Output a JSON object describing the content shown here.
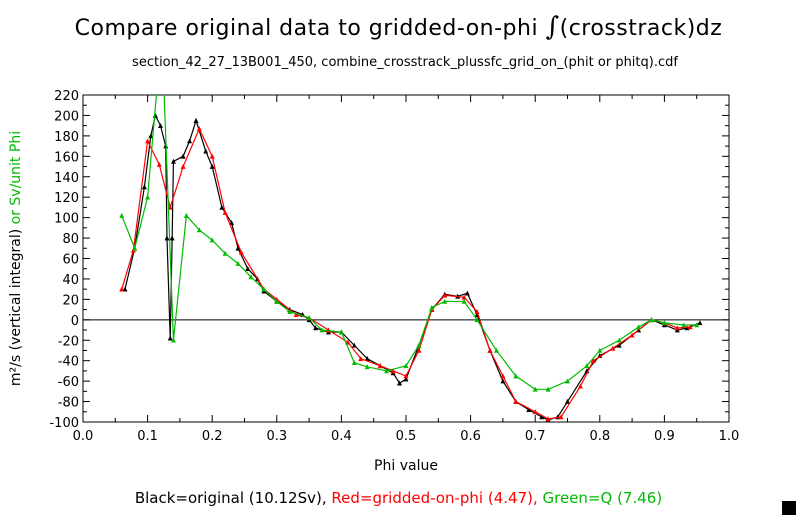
{
  "chart_data": {
    "type": "line",
    "title_prefix": "Compare original data to gridded-on-phi ",
    "title_symbol": "∫",
    "title_suffix": "(crosstrack)dz",
    "subtitle": "section_42_27_13B001_450, combine_crosstrack_plussfc_grid_on_(phit or phitq).cdf",
    "xlabel": "Phi value",
    "ylabel_black": "m²/s (vertical integral)",
    "ylabel_green": " or Sv/unit Phi",
    "xlim": [
      0,
      1
    ],
    "ylim": [
      -100,
      220
    ],
    "xticks": [
      "0.0",
      "0.1",
      "0.2",
      "0.3",
      "0.4",
      "0.5",
      "0.6",
      "0.7",
      "0.8",
      "0.9",
      "1.0"
    ],
    "yticks": [
      "220",
      "200",
      "180",
      "160",
      "140",
      "120",
      "100",
      "80",
      "60",
      "40",
      "20",
      "0",
      "-20",
      "-40",
      "-60",
      "-80",
      "-100"
    ],
    "colors": {
      "black": "#000000",
      "red": "#ff0000",
      "green": "#00bb00"
    },
    "legend": {
      "black": "Black=original (10.12Sv), ",
      "red": "Red=gridded-on-phi (4.47), ",
      "green": "Green=Q (7.46)"
    },
    "series": [
      {
        "name": "original",
        "color": "#000000",
        "points": [
          [
            0.065,
            30
          ],
          [
            0.08,
            70
          ],
          [
            0.095,
            130
          ],
          [
            0.105,
            180
          ],
          [
            0.112,
            200
          ],
          [
            0.12,
            190
          ],
          [
            0.128,
            170
          ],
          [
            0.13,
            80
          ],
          [
            0.135,
            -18
          ],
          [
            0.138,
            80
          ],
          [
            0.14,
            155
          ],
          [
            0.155,
            160
          ],
          [
            0.165,
            175
          ],
          [
            0.175,
            195
          ],
          [
            0.19,
            165
          ],
          [
            0.2,
            150
          ],
          [
            0.215,
            110
          ],
          [
            0.23,
            95
          ],
          [
            0.24,
            70
          ],
          [
            0.255,
            50
          ],
          [
            0.27,
            40
          ],
          [
            0.28,
            28
          ],
          [
            0.3,
            18
          ],
          [
            0.32,
            10
          ],
          [
            0.34,
            5
          ],
          [
            0.35,
            0
          ],
          [
            0.36,
            -8
          ],
          [
            0.38,
            -12
          ],
          [
            0.4,
            -12
          ],
          [
            0.42,
            -25
          ],
          [
            0.44,
            -38
          ],
          [
            0.46,
            -45
          ],
          [
            0.48,
            -52
          ],
          [
            0.49,
            -62
          ],
          [
            0.5,
            -58
          ],
          [
            0.52,
            -25
          ],
          [
            0.54,
            10
          ],
          [
            0.56,
            25
          ],
          [
            0.58,
            23
          ],
          [
            0.595,
            26
          ],
          [
            0.61,
            5
          ],
          [
            0.63,
            -30
          ],
          [
            0.65,
            -60
          ],
          [
            0.67,
            -80
          ],
          [
            0.69,
            -88
          ],
          [
            0.71,
            -95
          ],
          [
            0.72,
            -98
          ],
          [
            0.735,
            -95
          ],
          [
            0.75,
            -80
          ],
          [
            0.78,
            -50
          ],
          [
            0.8,
            -35
          ],
          [
            0.83,
            -25
          ],
          [
            0.86,
            -10
          ],
          [
            0.88,
            0
          ],
          [
            0.9,
            -5
          ],
          [
            0.92,
            -10
          ],
          [
            0.935,
            -8
          ],
          [
            0.955,
            -3
          ]
        ]
      },
      {
        "name": "gridded-on-phi",
        "color": "#ff0000",
        "points": [
          [
            0.06,
            30
          ],
          [
            0.078,
            68
          ],
          [
            0.1,
            175
          ],
          [
            0.118,
            152
          ],
          [
            0.135,
            110
          ],
          [
            0.155,
            150
          ],
          [
            0.18,
            187
          ],
          [
            0.2,
            160
          ],
          [
            0.22,
            105
          ],
          [
            0.245,
            66
          ],
          [
            0.28,
            30
          ],
          [
            0.3,
            20
          ],
          [
            0.33,
            5
          ],
          [
            0.35,
            2
          ],
          [
            0.38,
            -10
          ],
          [
            0.41,
            -22
          ],
          [
            0.43,
            -38
          ],
          [
            0.46,
            -45
          ],
          [
            0.48,
            -50
          ],
          [
            0.5,
            -55
          ],
          [
            0.52,
            -30
          ],
          [
            0.54,
            10
          ],
          [
            0.56,
            24
          ],
          [
            0.59,
            22
          ],
          [
            0.61,
            8
          ],
          [
            0.63,
            -30
          ],
          [
            0.65,
            -55
          ],
          [
            0.67,
            -80
          ],
          [
            0.7,
            -90
          ],
          [
            0.72,
            -97
          ],
          [
            0.74,
            -95
          ],
          [
            0.77,
            -65
          ],
          [
            0.79,
            -40
          ],
          [
            0.82,
            -28
          ],
          [
            0.85,
            -15
          ],
          [
            0.88,
            0
          ],
          [
            0.9,
            -3
          ],
          [
            0.92,
            -8
          ],
          [
            0.94,
            -7
          ]
        ]
      },
      {
        "name": "Q",
        "color": "#00bb00",
        "points": [
          [
            0.06,
            102
          ],
          [
            0.08,
            70
          ],
          [
            0.1,
            120
          ],
          [
            0.115,
            230
          ],
          [
            0.125,
            230
          ],
          [
            0.14,
            -20
          ],
          [
            0.16,
            102
          ],
          [
            0.18,
            88
          ],
          [
            0.2,
            78
          ],
          [
            0.22,
            65
          ],
          [
            0.24,
            55
          ],
          [
            0.26,
            42
          ],
          [
            0.28,
            30
          ],
          [
            0.3,
            18
          ],
          [
            0.32,
            8
          ],
          [
            0.35,
            2
          ],
          [
            0.37,
            -10
          ],
          [
            0.4,
            -12
          ],
          [
            0.42,
            -42
          ],
          [
            0.44,
            -46
          ],
          [
            0.47,
            -50
          ],
          [
            0.5,
            -45
          ],
          [
            0.52,
            -25
          ],
          [
            0.54,
            12
          ],
          [
            0.56,
            18
          ],
          [
            0.59,
            18
          ],
          [
            0.61,
            0
          ],
          [
            0.64,
            -30
          ],
          [
            0.67,
            -55
          ],
          [
            0.7,
            -68
          ],
          [
            0.72,
            -68
          ],
          [
            0.75,
            -60
          ],
          [
            0.78,
            -45
          ],
          [
            0.8,
            -30
          ],
          [
            0.83,
            -20
          ],
          [
            0.86,
            -7
          ],
          [
            0.88,
            0
          ],
          [
            0.9,
            -3
          ],
          [
            0.93,
            -5
          ],
          [
            0.95,
            -5
          ]
        ]
      }
    ]
  }
}
